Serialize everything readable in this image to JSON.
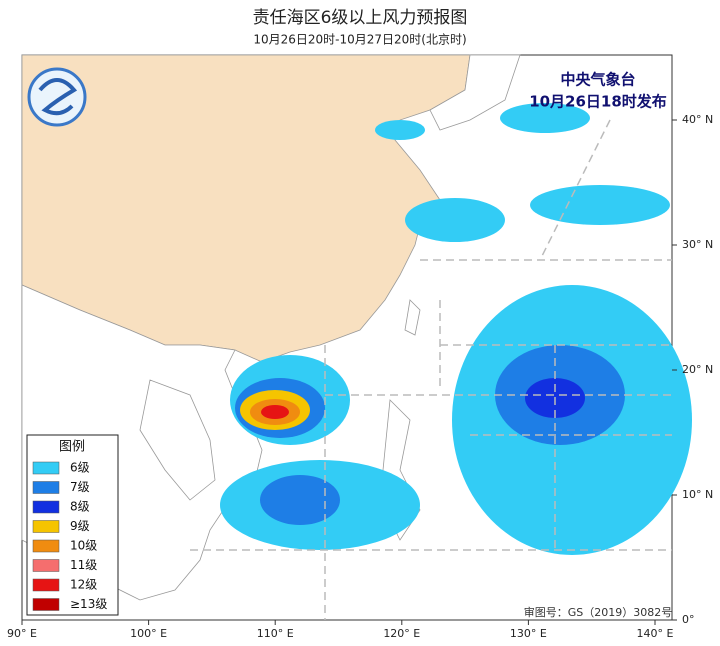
{
  "header": {
    "title": "责任海区6级以上风力预报图",
    "subtitle": "10月26日20时-10月27日20时(北京时)"
  },
  "agency": {
    "name": "中央气象台",
    "issued": "10月26日18时发布"
  },
  "axes": {
    "longitude": [
      "90° E",
      "100° E",
      "110° E",
      "120° E",
      "130° E",
      "140° E"
    ],
    "latitude": [
      "40° N",
      "30° N",
      "20° N",
      "10° N",
      "0°"
    ]
  },
  "legend": {
    "title": "图例",
    "entries": [
      {
        "label": "6级",
        "color": "#33ccf5"
      },
      {
        "label": "7级",
        "color": "#1e7ee6"
      },
      {
        "label": "8级",
        "color": "#1230e0"
      },
      {
        "label": "9级",
        "color": "#f5c400"
      },
      {
        "label": "10级",
        "color": "#f08c10"
      },
      {
        "label": "11级",
        "color": "#f56e6e"
      },
      {
        "label": "12级",
        "color": "#e61414"
      },
      {
        "label": "≥13级",
        "color": "#c00000"
      }
    ]
  },
  "footer": {
    "review_number": "审图号：GS（2019）3082号"
  }
}
